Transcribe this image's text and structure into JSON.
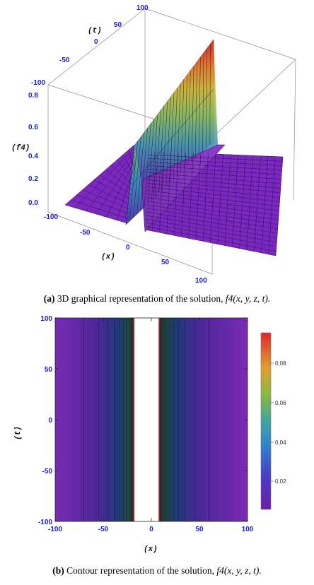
{
  "figure_a": {
    "label": "(a)",
    "caption_text": "3D graphical representation of the solution,",
    "caption_func": "f4(x, y, z, t).",
    "xlabel": "(x)",
    "ylabel": "(t)",
    "zlabel": "(f4)"
  },
  "figure_b": {
    "label": "(b)",
    "caption_text": "Contour representation of the solution,",
    "caption_func": "f4(x, y, z, t).",
    "xlabel": "(x)",
    "ylabel": "(t)"
  },
  "colors": {
    "surface_low": "#7c28c0",
    "contour_fill": "#7a2ab4",
    "mesh": "#1f0f3f",
    "bar_top": "#e0272b",
    "bar_bottom": "#6b1ea8"
  },
  "chart_data": [
    {
      "type": "surface",
      "xlim": [
        -100,
        100
      ],
      "ylim": [
        -100,
        100
      ],
      "zlim": [
        0,
        0.8
      ],
      "x_ticks": [
        "-100",
        "-50",
        "0",
        "50",
        "100"
      ],
      "y_ticks": [
        "-100",
        "-50",
        "0",
        "50",
        "100"
      ],
      "z_ticks": [
        "0.0",
        "0.2",
        "0.4",
        "0.6",
        "0.8"
      ],
      "peak_x": -5,
      "peak_height_range": [
        0.25,
        0.8
      ]
    },
    {
      "type": "heatmap",
      "xlim": [
        -100,
        100
      ],
      "ylim": [
        -100,
        100
      ],
      "x_ticks": [
        "-100",
        "-50",
        "0",
        "50",
        "100"
      ],
      "y_ticks": [
        "100",
        "50",
        "0",
        "-50",
        "-100"
      ],
      "gap_x": [
        -18,
        8
      ],
      "colorbar_ticks": [
        "0.08",
        "0.06",
        "0.04",
        "0.02"
      ],
      "colorbar_range": [
        0.005,
        0.095
      ]
    }
  ]
}
